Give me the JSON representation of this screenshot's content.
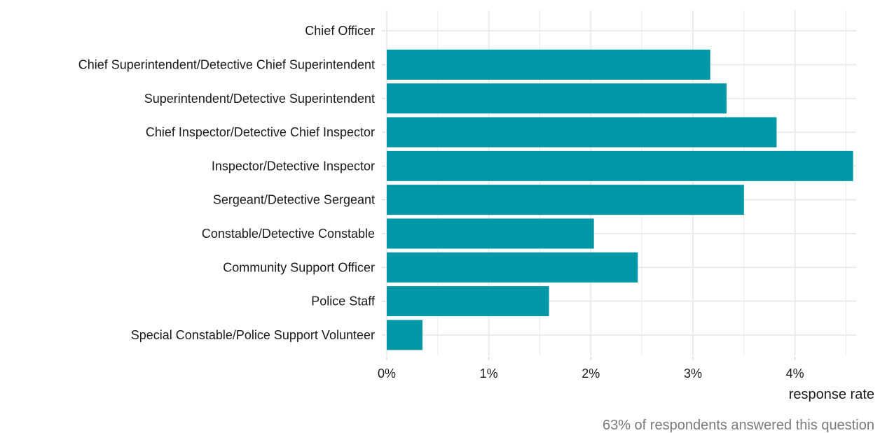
{
  "chart_data": {
    "type": "bar",
    "orientation": "horizontal",
    "categories": [
      "Chief Officer",
      "Chief Superintendent/Detective Chief Superintendent",
      "Superintendent/Detective Superintendent",
      "Chief Inspector/Detective Chief Inspector",
      "Inspector/Detective Inspector",
      "Sergeant/Detective Sergeant",
      "Constable/Detective Constable",
      "Community Support Officer",
      "Police Staff",
      "Special Constable/Police Support Volunteer"
    ],
    "values": [
      0,
      3.17,
      3.33,
      3.82,
      4.57,
      3.5,
      2.03,
      2.46,
      1.59,
      0.35
    ],
    "xlabel": "response rate",
    "ylabel": "",
    "xlim": [
      0,
      4.6
    ],
    "xticks": [
      0,
      1,
      2,
      3,
      4
    ],
    "xtick_labels": [
      "0%",
      "1%",
      "2%",
      "3%",
      "4%"
    ],
    "grid": true,
    "caption": "63% of respondents answered this question",
    "bar_color": "#0097a7",
    "grid_color": "#ebebeb"
  }
}
